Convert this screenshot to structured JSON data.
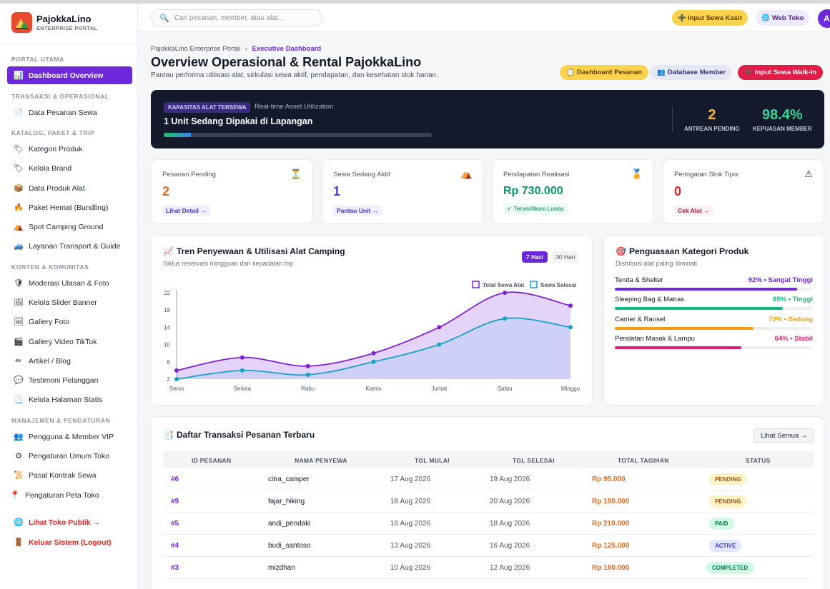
{
  "brand": {
    "name": "PajokkaLino",
    "subtitle": "ENTERPRISE PORTAL"
  },
  "sidebar": {
    "sections": [
      {
        "label": "PORTAL UTAMA"
      },
      {
        "label": "TRANSAKSI & OPERASIONAL"
      },
      {
        "label": "KATALOG, PAKET & TRIP"
      },
      {
        "label": "KONTEN & KOMUNITAS"
      },
      {
        "label": "MANAJEMEN & PENGATURAN"
      }
    ],
    "items": [
      {
        "label": "Dashboard Overview",
        "icon": "chart-icon"
      },
      {
        "label": "Data Pesanan Sewa",
        "icon": "document-icon"
      },
      {
        "label": "Kategori Produk",
        "icon": "tag-icon"
      },
      {
        "label": "Kelola Brand",
        "icon": "tag-icon"
      },
      {
        "label": "Data Produk Alat",
        "icon": "box-icon"
      },
      {
        "label": "Paket Hemat (Bundling)",
        "icon": "fire-icon"
      },
      {
        "label": "Spot Camping Ground",
        "icon": "tent-icon"
      },
      {
        "label": "Layanan Transport & Guide",
        "icon": "car-icon"
      },
      {
        "label": "Moderasi Ulasan & Foto",
        "icon": "shield-icon"
      },
      {
        "label": "Kelola Slider Banner",
        "icon": "image-icon"
      },
      {
        "label": "Gallery Foto",
        "icon": "image-icon"
      },
      {
        "label": "Gallery Video TikTok",
        "icon": "video-icon"
      },
      {
        "label": "Artikel / Blog",
        "icon": "pencil-icon"
      },
      {
        "label": "Testimoni Pelanggan",
        "icon": "chat-icon"
      },
      {
        "label": "Kelola Halaman Statis",
        "icon": "page-icon"
      },
      {
        "label": "Pengguna & Member VIP",
        "icon": "users-icon"
      },
      {
        "label": "Pengaturan Umum Toko",
        "icon": "gear-icon"
      },
      {
        "label": "Pasal Kontrak Sewa",
        "icon": "scroll-icon"
      },
      {
        "label": "Pengaturan Peta Toko",
        "icon": "pin-icon"
      },
      {
        "label": "Lihat Toko Publik →",
        "icon": "globe-icon"
      },
      {
        "label": "Keluar Sistem (Logout)",
        "icon": "door-icon"
      }
    ]
  },
  "topbar": {
    "search_placeholder": "Cari pesanan, member, atau alat...",
    "btn_kasir": "Input Sewa Kasir",
    "btn_web": "Web Toko",
    "avatar": "A"
  },
  "header": {
    "breadcrumb_root": "PajokkaLino Enterprise Portal",
    "breadcrumb_sep": "›",
    "breadcrumb_current": "Executive Dashboard",
    "title": "Overview Operasional & Rental PajokkaLino",
    "subtitle": "Pantau performa utilisasi alat, sirkulasi sewa aktif, pendapatan, dan kesehatan stok harian.",
    "btn_pesanan": "Dashboard Pesanan",
    "btn_member": "Database Member",
    "btn_walkin": "Input Sewa Walk-In"
  },
  "hero": {
    "badge": "KAPASITAS ALAT TERSEWA",
    "realtime": "Real-time Asset Utilization",
    "title": "1 Unit Sedang Dipakai di Lapangan",
    "progress": 0.1,
    "stat1_value": "2",
    "stat1_label": "ANTREAN PENDING",
    "stat2_value": "98.4%",
    "stat2_label": "KEPUASAN MEMBER"
  },
  "kpis": [
    {
      "label": "Pesanan Pending",
      "value": "2",
      "link": "Lihat Detail →",
      "icon": "hourglass-icon"
    },
    {
      "label": "Sewa Sedang Aktif",
      "value": "1",
      "link": "Pantau Unit →",
      "icon": "tent-icon"
    },
    {
      "label": "Pendapatan Realisasi",
      "value": "Rp 730.000",
      "link": "✓ Terverifikasi Lunas",
      "icon": "medal-icon"
    },
    {
      "label": "Peringatan Stok Tipis",
      "value": "0",
      "link": "Cek Alat →",
      "icon": "warning-icon"
    }
  ],
  "trend": {
    "title": "Tren Penyewaan & Utilisasi Alat Camping",
    "subtitle": "Siklus reservasi mingguan dan kepadatan trip",
    "seg_active": "7 Hari",
    "seg_inactive": "30 Hari"
  },
  "chart_data": {
    "type": "area",
    "x": [
      "Senin",
      "Selasa",
      "Rabu",
      "Kamis",
      "Jumat",
      "Sabtu",
      "Minggu"
    ],
    "series": [
      {
        "name": "Total Sewa Alat",
        "values": [
          4,
          7,
          5,
          8,
          14,
          22,
          19
        ],
        "color": "#7c22d6"
      },
      {
        "name": "Sewa Selesai",
        "values": [
          2,
          4,
          3,
          6,
          10,
          16,
          14
        ],
        "color": "#17a2c4"
      }
    ],
    "yticks": [
      2,
      6,
      10,
      14,
      18,
      22
    ],
    "ylim": [
      2,
      22
    ],
    "legend": "top-right",
    "grid": false
  },
  "categories": {
    "title": "Penguasaan Kategori Produk",
    "subtitle": "Distribusi alat paling diminati",
    "items": [
      {
        "name": "Tenda & Shelter",
        "pct_label": "92% • Sangat Tinggi",
        "value": 0.92,
        "color": "#6d28d9"
      },
      {
        "name": "Sleeping Bag & Matras",
        "pct_label": "85% • Tinggi",
        "value": 0.85,
        "color": "#10b981"
      },
      {
        "name": "Carrier & Ransel",
        "pct_label": "70% • Sedang",
        "value": 0.7,
        "color": "#f59e0b"
      },
      {
        "name": "Peralatan Masak & Lampu",
        "pct_label": "64% • Stabil",
        "value": 0.64,
        "color": "#e11d74"
      }
    ]
  },
  "transactions": {
    "title": "Daftar Transaksi Pesanan Terbaru",
    "btn_all": "Lihat Semua →",
    "columns": [
      "ID PESANAN",
      "NAMA PENYEWA",
      "TGL MULAI",
      "TGL SELESAI",
      "TOTAL TAGIHAN",
      "STATUS"
    ],
    "rows": [
      {
        "id": "#6",
        "name": "citra_camper",
        "start": "17 Aug 2026",
        "end": "19 Aug 2026",
        "total": "Rp 95.000",
        "status": "PENDING"
      },
      {
        "id": "#9",
        "name": "fajar_hiking",
        "start": "18 Aug 2026",
        "end": "20 Aug 2026",
        "total": "Rp 180.000",
        "status": "PENDING"
      },
      {
        "id": "#5",
        "name": "andi_pendaki",
        "start": "16 Aug 2026",
        "end": "18 Aug 2026",
        "total": "Rp 210.000",
        "status": "PAID"
      },
      {
        "id": "#4",
        "name": "budi_santoso",
        "start": "13 Aug 2026",
        "end": "16 Aug 2026",
        "total": "Rp 125.000",
        "status": "ACTIVE"
      },
      {
        "id": "#3",
        "name": "mizdhan",
        "start": "10 Aug 2026",
        "end": "12 Aug 2026",
        "total": "Rp 160.000",
        "status": "COMPLETED"
      }
    ]
  }
}
